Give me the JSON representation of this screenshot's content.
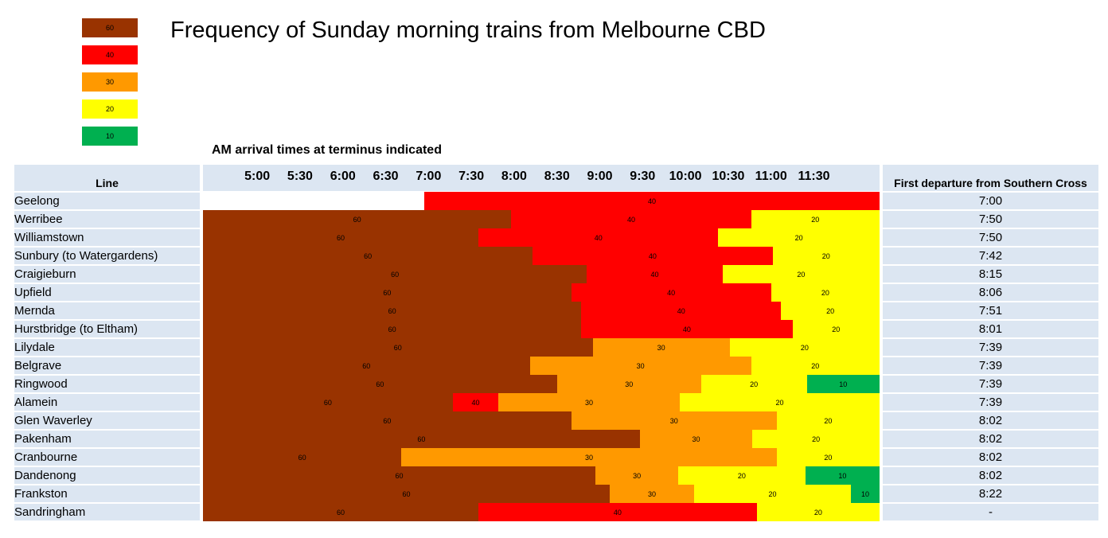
{
  "title": "Frequency of Sunday morning trains from Melbourne CBD",
  "subtitle": "AM arrival times at terminus indicated",
  "colors": {
    "60": "#993300",
    "40": "#ff0000",
    "30": "#ff9900",
    "20": "#ffff00",
    "10": "#00b050"
  },
  "legend": [
    {
      "label": "60",
      "color": "#993300"
    },
    {
      "label": "40",
      "color": "#ff0000"
    },
    {
      "label": "30",
      "color": "#ff9900"
    },
    {
      "label": "20",
      "color": "#ffff00"
    },
    {
      "label": "10",
      "color": "#00b050"
    }
  ],
  "table": {
    "line_header": "Line",
    "first_header": "First departure from Southern Cross"
  },
  "chart_data": {
    "type": "table",
    "title": "Frequency of Sunday morning trains from Melbourne CBD",
    "subtitle": "AM arrival times at terminus indicated",
    "time_ticks": [
      "5:00",
      "5:30",
      "6:00",
      "6:30",
      "7:00",
      "7:30",
      "8:00",
      "8:30",
      "9:00",
      "9:30",
      "10:00",
      "10:30",
      "11:00",
      "11:30"
    ],
    "x_range_minutes": [
      262,
      736
    ],
    "rows": [
      {
        "line": "Geelong",
        "first": "7:00",
        "segments": [
          {
            "start": 417,
            "end": 736,
            "freq": 40
          }
        ]
      },
      {
        "line": "Werribee",
        "first": "7:50",
        "segments": [
          {
            "start": 262,
            "end": 478,
            "freq": 60
          },
          {
            "start": 478,
            "end": 646,
            "freq": 40
          },
          {
            "start": 646,
            "end": 736,
            "freq": 20
          }
        ]
      },
      {
        "line": "Williamstown",
        "first": "7:50",
        "segments": [
          {
            "start": 262,
            "end": 455,
            "freq": 60
          },
          {
            "start": 455,
            "end": 623,
            "freq": 40
          },
          {
            "start": 623,
            "end": 736,
            "freq": 20
          }
        ]
      },
      {
        "line": "Sunbury (to Watergardens)",
        "first": "7:42",
        "segments": [
          {
            "start": 262,
            "end": 493,
            "freq": 60
          },
          {
            "start": 493,
            "end": 661,
            "freq": 40
          },
          {
            "start": 661,
            "end": 736,
            "freq": 20
          }
        ]
      },
      {
        "line": "Craigieburn",
        "first": "8:15",
        "segments": [
          {
            "start": 262,
            "end": 531,
            "freq": 60
          },
          {
            "start": 531,
            "end": 626,
            "freq": 40
          },
          {
            "start": 626,
            "end": 736,
            "freq": 20
          }
        ]
      },
      {
        "line": "Upfield",
        "first": "8:06",
        "segments": [
          {
            "start": 262,
            "end": 520,
            "freq": 60
          },
          {
            "start": 520,
            "end": 660,
            "freq": 40
          },
          {
            "start": 660,
            "end": 736,
            "freq": 20
          }
        ]
      },
      {
        "line": "Mernda",
        "first": "7:51",
        "segments": [
          {
            "start": 262,
            "end": 527,
            "freq": 60
          },
          {
            "start": 527,
            "end": 667,
            "freq": 40
          },
          {
            "start": 667,
            "end": 736,
            "freq": 20
          }
        ]
      },
      {
        "line": "Hurstbridge (to Eltham)",
        "first": "8:01",
        "segments": [
          {
            "start": 262,
            "end": 527,
            "freq": 60
          },
          {
            "start": 527,
            "end": 675,
            "freq": 40
          },
          {
            "start": 675,
            "end": 736,
            "freq": 20
          }
        ]
      },
      {
        "line": "Lilydale",
        "first": "7:39",
        "segments": [
          {
            "start": 262,
            "end": 535,
            "freq": 60
          },
          {
            "start": 535,
            "end": 631,
            "freq": 30
          },
          {
            "start": 631,
            "end": 736,
            "freq": 20
          }
        ]
      },
      {
        "line": "Belgrave",
        "first": "7:39",
        "segments": [
          {
            "start": 262,
            "end": 491,
            "freq": 60
          },
          {
            "start": 491,
            "end": 646,
            "freq": 30
          },
          {
            "start": 646,
            "end": 736,
            "freq": 20
          }
        ]
      },
      {
        "line": "Ringwood",
        "first": "7:39",
        "segments": [
          {
            "start": 262,
            "end": 510,
            "freq": 60
          },
          {
            "start": 510,
            "end": 611,
            "freq": 30
          },
          {
            "start": 611,
            "end": 685,
            "freq": 20
          },
          {
            "start": 685,
            "end": 736,
            "freq": 10
          }
        ]
      },
      {
        "line": "Alamein",
        "first": "7:39",
        "segments": [
          {
            "start": 262,
            "end": 437,
            "freq": 60
          },
          {
            "start": 437,
            "end": 469,
            "freq": 40
          },
          {
            "start": 469,
            "end": 596,
            "freq": 30
          },
          {
            "start": 596,
            "end": 736,
            "freq": 20
          }
        ]
      },
      {
        "line": "Glen Waverley",
        "first": "8:02",
        "segments": [
          {
            "start": 262,
            "end": 520,
            "freq": 60
          },
          {
            "start": 520,
            "end": 664,
            "freq": 30
          },
          {
            "start": 664,
            "end": 736,
            "freq": 20
          }
        ]
      },
      {
        "line": "Pakenham",
        "first": "8:02",
        "segments": [
          {
            "start": 262,
            "end": 568,
            "freq": 60
          },
          {
            "start": 568,
            "end": 647,
            "freq": 30
          },
          {
            "start": 647,
            "end": 736,
            "freq": 20
          }
        ]
      },
      {
        "line": "Cranbourne",
        "first": "8:02",
        "segments": [
          {
            "start": 262,
            "end": 401,
            "freq": 60
          },
          {
            "start": 401,
            "end": 664,
            "freq": 30
          },
          {
            "start": 664,
            "end": 736,
            "freq": 20
          }
        ]
      },
      {
        "line": "Dandenong",
        "first": "8:02",
        "segments": [
          {
            "start": 262,
            "end": 537,
            "freq": 60
          },
          {
            "start": 537,
            "end": 595,
            "freq": 30
          },
          {
            "start": 595,
            "end": 684,
            "freq": 20
          },
          {
            "start": 684,
            "end": 736,
            "freq": 10
          }
        ]
      },
      {
        "line": "Frankston",
        "first": "8:22",
        "segments": [
          {
            "start": 262,
            "end": 547,
            "freq": 60
          },
          {
            "start": 547,
            "end": 606,
            "freq": 30
          },
          {
            "start": 606,
            "end": 716,
            "freq": 20
          },
          {
            "start": 716,
            "end": 736,
            "freq": 10
          }
        ]
      },
      {
        "line": "Sandringham",
        "first": "-",
        "segments": [
          {
            "start": 262,
            "end": 455,
            "freq": 60
          },
          {
            "start": 455,
            "end": 650,
            "freq": 40
          },
          {
            "start": 650,
            "end": 736,
            "freq": 20
          }
        ]
      }
    ]
  }
}
